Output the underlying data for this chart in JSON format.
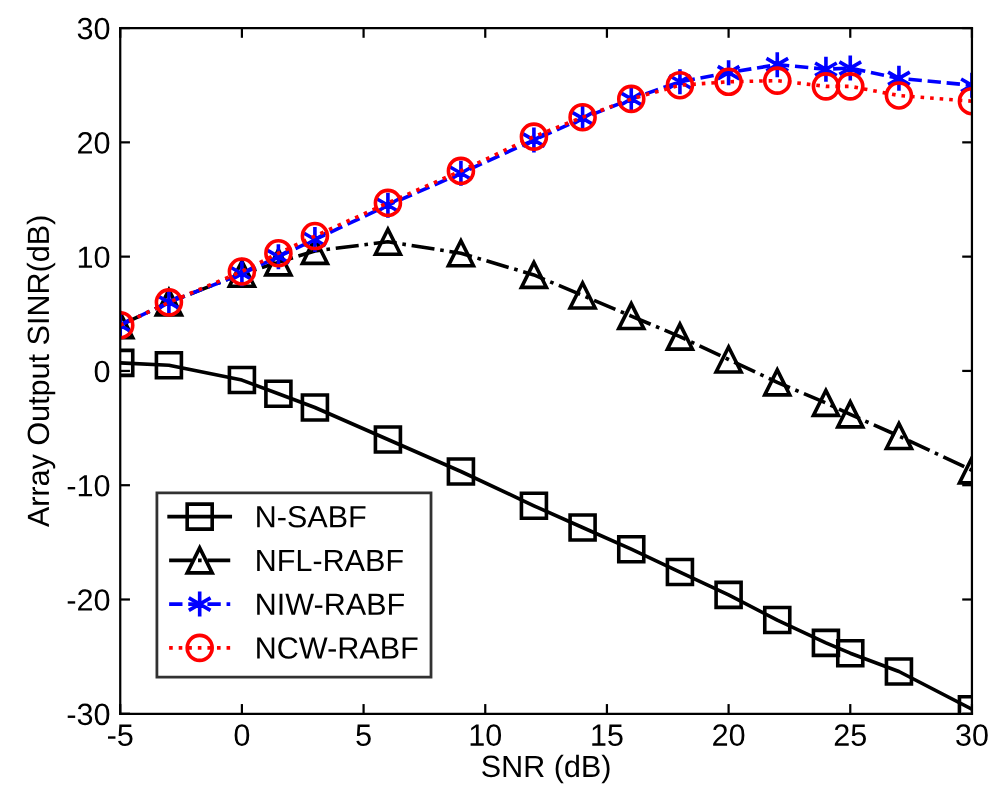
{
  "chart_data": {
    "type": "line",
    "xlabel": "SNR (dB)",
    "ylabel": "Array Output SINR(dB)",
    "x": [
      -5,
      -3,
      0,
      1.5,
      3,
      6,
      9,
      12,
      14,
      16,
      18,
      20,
      22,
      24,
      25,
      27,
      30
    ],
    "xlim": [
      -5,
      30
    ],
    "xticks": [
      -5,
      0,
      5,
      10,
      15,
      20,
      25,
      30
    ],
    "ylim": [
      -30,
      30
    ],
    "yticks": [
      -30,
      -20,
      -10,
      0,
      10,
      20,
      30
    ],
    "grid": false,
    "legend": "bottom left",
    "series": [
      {
        "name": "N-SABF",
        "color": "#000000",
        "marker": "square",
        "line_style": "solid",
        "values": [
          0.7,
          0.5,
          -0.8,
          -2,
          -3.2,
          -6,
          -8.8,
          -11.8,
          -13.7,
          -15.6,
          -17.6,
          -19.6,
          -21.8,
          -23.8,
          -24.7,
          -26.3,
          -29.6
        ]
      },
      {
        "name": "NFL-RABF",
        "color": "#000000",
        "marker": "triangle",
        "line_style": "dashdot",
        "values": [
          4,
          6,
          8.5,
          9.5,
          10.5,
          11.3,
          10.3,
          8.4,
          6.6,
          4.8,
          3,
          1,
          -1,
          -2.8,
          -3.8,
          -5.7,
          -8.7
        ]
      },
      {
        "name": "NIW-RABF",
        "color": "#0000ff",
        "marker": "cross",
        "line_style": "dashed",
        "values": [
          4,
          6,
          8.5,
          10,
          11.5,
          14.5,
          17.3,
          20.2,
          22.1,
          23.8,
          25.3,
          26.1,
          26.8,
          26.4,
          26.5,
          25.6,
          25.0
        ]
      },
      {
        "name": "NCW-RABF",
        "color": "#ff0000",
        "marker": "circle",
        "line_style": "dotted",
        "values": [
          4,
          6,
          8.7,
          10.3,
          11.8,
          14.7,
          17.5,
          20.5,
          22.2,
          23.8,
          25,
          25.3,
          25.4,
          24.9,
          24.9,
          24.1,
          23.6
        ]
      }
    ]
  }
}
